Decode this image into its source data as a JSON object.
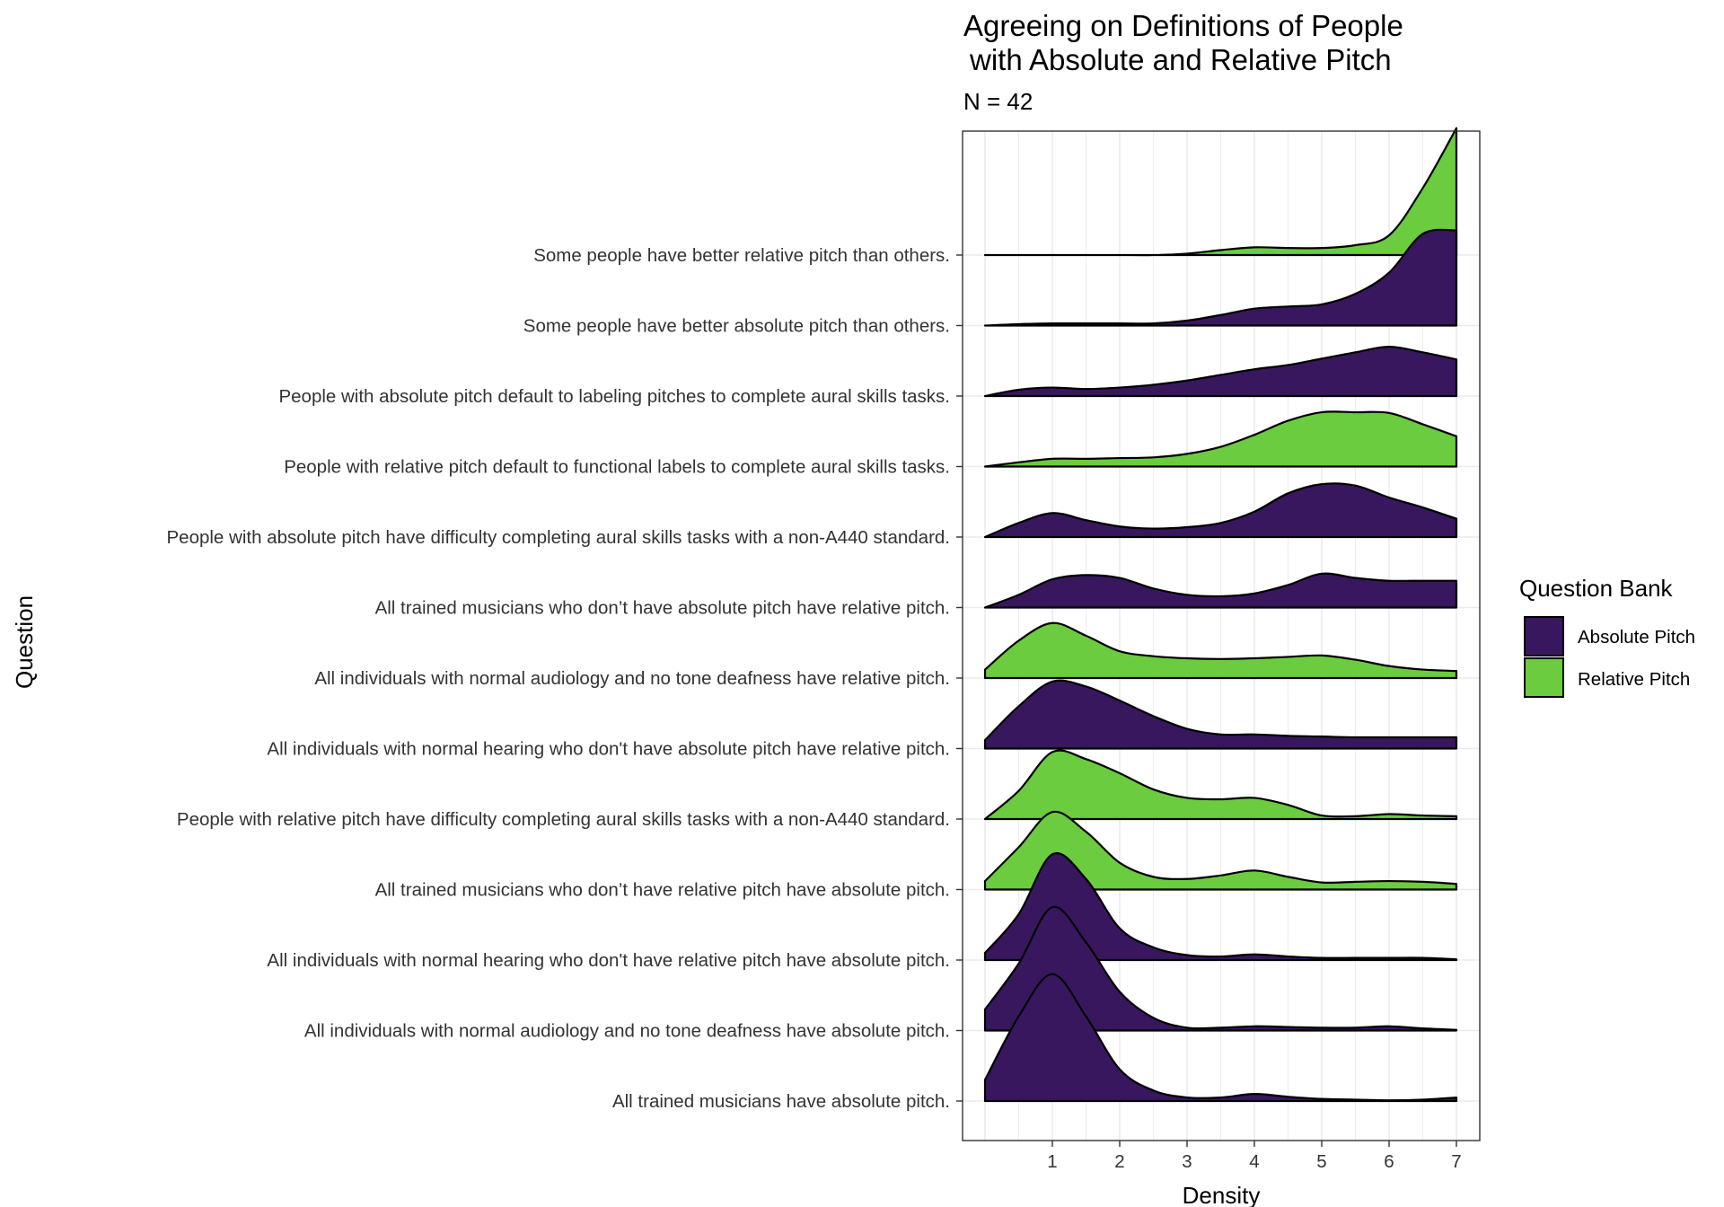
{
  "chart_data": {
    "type": "ridgeline",
    "title_lines": [
      "Agreeing on Definitions of People",
      "with Absolute and Relative Pitch"
    ],
    "subtitle": "N = 42",
    "xlabel": "Density",
    "ylabel": "Question",
    "xlim": [
      -0.35,
      7.35
    ],
    "x_ticks": [
      1,
      2,
      3,
      4,
      5,
      6,
      7
    ],
    "x_tick_labels": [
      "1",
      "2",
      "3",
      "4",
      "5",
      "6",
      "7"
    ],
    "x_grid_points": [
      0,
      0.5,
      1,
      1.5,
      2,
      2.5,
      3,
      3.5,
      4,
      4.5,
      5,
      5.5,
      6,
      6.5,
      7
    ],
    "grid": true,
    "legend": {
      "title": "Question Bank",
      "position": "right",
      "entries": [
        {
          "name": "Absolute Pitch",
          "color": "#38175E"
        },
        {
          "name": "Relative Pitch",
          "color": "#6ACC3E"
        }
      ]
    },
    "density_x": [
      0,
      0.5,
      1,
      1.5,
      2,
      2.5,
      3,
      3.5,
      4,
      4.5,
      5,
      5.5,
      6,
      6.5,
      7
    ],
    "series": [
      {
        "question": "Some people have better relative pitch than others.",
        "bank": "Relative Pitch",
        "heights": [
          0,
          0,
          0,
          0,
          0,
          0,
          0.02,
          0.07,
          0.11,
          0.1,
          0.1,
          0.14,
          0.28,
          0.95,
          1.8
        ]
      },
      {
        "question": "Some people have better absolute pitch than others.",
        "bank": "Absolute Pitch",
        "heights": [
          0,
          0.02,
          0.03,
          0.03,
          0.03,
          0.03,
          0.07,
          0.15,
          0.24,
          0.27,
          0.3,
          0.45,
          0.75,
          1.3,
          1.35
        ]
      },
      {
        "question": "People with absolute pitch default to labeling pitches to complete aural skills tasks.",
        "bank": "Absolute Pitch",
        "heights": [
          0,
          0.09,
          0.12,
          0.1,
          0.12,
          0.16,
          0.22,
          0.3,
          0.38,
          0.44,
          0.53,
          0.62,
          0.7,
          0.62,
          0.52
        ]
      },
      {
        "question": "People with relative pitch default to functional labels to complete aural skills tasks.",
        "bank": "Relative Pitch",
        "heights": [
          0,
          0.06,
          0.11,
          0.11,
          0.12,
          0.13,
          0.18,
          0.28,
          0.45,
          0.65,
          0.77,
          0.77,
          0.76,
          0.6,
          0.43
        ]
      },
      {
        "question": "People with absolute pitch have difficulty completing aural skills tasks with a non-A440 standard.",
        "bank": "Absolute Pitch",
        "heights": [
          0,
          0.2,
          0.34,
          0.24,
          0.15,
          0.12,
          0.14,
          0.2,
          0.36,
          0.62,
          0.75,
          0.73,
          0.56,
          0.42,
          0.26
        ]
      },
      {
        "question": "All trained musicians who don’t have absolute pitch have relative pitch.",
        "bank": "Absolute Pitch",
        "heights": [
          0,
          0.18,
          0.4,
          0.46,
          0.42,
          0.27,
          0.18,
          0.16,
          0.2,
          0.32,
          0.48,
          0.42,
          0.38,
          0.38,
          0.38
        ]
      },
      {
        "question": "All individuals with normal audiology and no tone deafness have relative pitch.",
        "bank": "Relative Pitch",
        "heights": [
          0.12,
          0.53,
          0.78,
          0.6,
          0.38,
          0.31,
          0.28,
          0.27,
          0.28,
          0.3,
          0.32,
          0.26,
          0.17,
          0.12,
          0.1
        ]
      },
      {
        "question": "All individuals with normal hearing who don't have absolute pitch have relative pitch.",
        "bank": "Absolute Pitch",
        "heights": [
          0.12,
          0.6,
          0.95,
          0.88,
          0.68,
          0.46,
          0.28,
          0.2,
          0.2,
          0.18,
          0.17,
          0.16,
          0.16,
          0.16,
          0.16
        ]
      },
      {
        "question": "People with relative pitch have difficulty completing aural skills tasks with a non-A440 standard.",
        "bank": "Relative Pitch",
        "heights": [
          0,
          0.4,
          0.95,
          0.85,
          0.65,
          0.42,
          0.3,
          0.28,
          0.3,
          0.2,
          0.05,
          0.04,
          0.07,
          0.05,
          0.04
        ]
      },
      {
        "question": "All trained musicians who don’t have relative pitch have absolute pitch.",
        "bank": "Relative Pitch",
        "heights": [
          0.12,
          0.6,
          1.1,
          0.82,
          0.38,
          0.18,
          0.15,
          0.2,
          0.27,
          0.18,
          0.1,
          0.11,
          0.12,
          0.11,
          0.08
        ]
      },
      {
        "question": "All individuals with normal hearing who don't have relative pitch have absolute pitch.",
        "bank": "Absolute Pitch",
        "heights": [
          0.1,
          0.65,
          1.5,
          1.15,
          0.45,
          0.18,
          0.07,
          0.05,
          0.08,
          0.05,
          0.03,
          0.03,
          0.03,
          0.03,
          0.01
        ]
      },
      {
        "question": "All individuals with normal audiology and no tone deafness have absolute pitch.",
        "bank": "Absolute Pitch",
        "heights": [
          0.3,
          0.95,
          1.75,
          1.25,
          0.55,
          0.18,
          0.04,
          0.04,
          0.06,
          0.05,
          0.04,
          0.04,
          0.06,
          0.03,
          0.01
        ]
      },
      {
        "question": "All trained musicians have absolute pitch.",
        "bank": "Absolute Pitch",
        "heights": [
          0.3,
          1.2,
          1.8,
          1.2,
          0.45,
          0.15,
          0.05,
          0.05,
          0.1,
          0.06,
          0.03,
          0.02,
          0.01,
          0.02,
          0.05
        ]
      }
    ]
  }
}
